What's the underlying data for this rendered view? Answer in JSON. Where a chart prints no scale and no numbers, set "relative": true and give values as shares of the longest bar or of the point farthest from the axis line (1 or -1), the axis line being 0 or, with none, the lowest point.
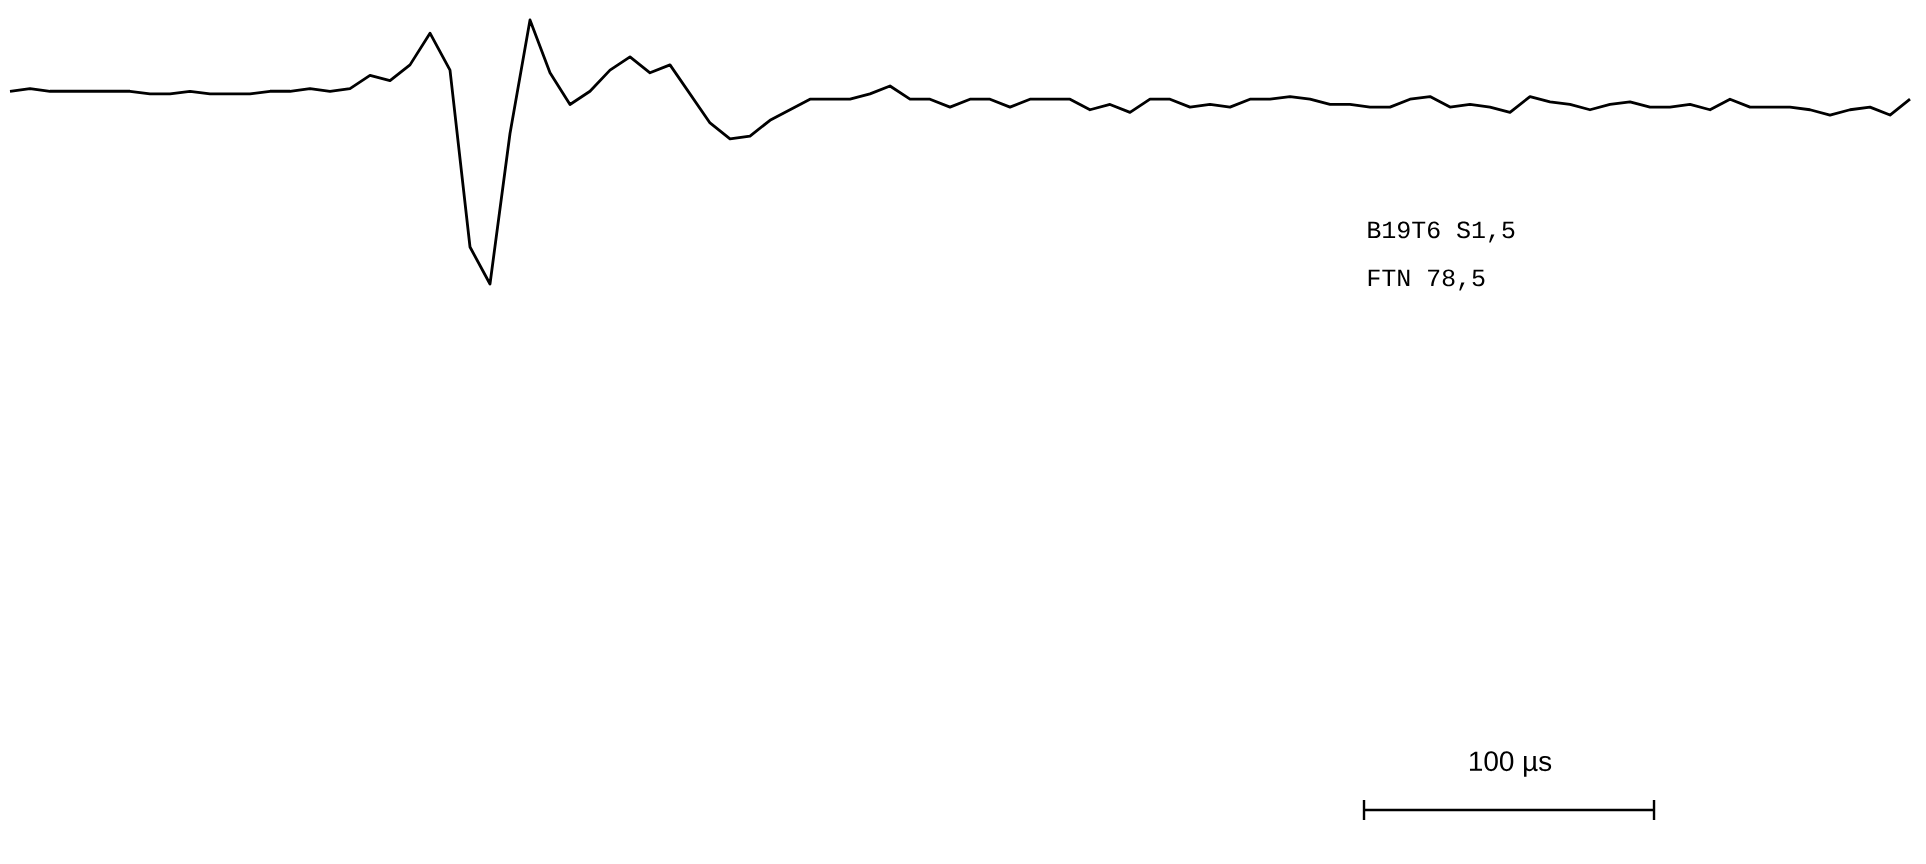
{
  "chart_data": {
    "type": "line",
    "relative": true,
    "categories": [
      null,
      null,
      null,
      null,
      null,
      null,
      null,
      null,
      null,
      null,
      null,
      null,
      null,
      null,
      null,
      null,
      null,
      null,
      null,
      null,
      null,
      null,
      null,
      null,
      null,
      null,
      null,
      null,
      null,
      null,
      null,
      null,
      null,
      null,
      null,
      null,
      null,
      null,
      null,
      null,
      null,
      null,
      null,
      null,
      null,
      null,
      null,
      null,
      null,
      null,
      null,
      null,
      null,
      null,
      null,
      null,
      null,
      null,
      null,
      null,
      null,
      null,
      null,
      null,
      null,
      null,
      null,
      null,
      null,
      null,
      null,
      null,
      null,
      null,
      null,
      null,
      null,
      null,
      null,
      null,
      null,
      null,
      null,
      null,
      null,
      null,
      null,
      null,
      null,
      null,
      null,
      null,
      null,
      null,
      null,
      null
    ],
    "series": [
      {
        "color": "#000000",
        "values": [
          0.73,
          0.74,
          0.73,
          0.73,
          0.73,
          0.73,
          0.73,
          0.72,
          0.72,
          0.73,
          0.72,
          0.72,
          0.72,
          0.73,
          0.73,
          0.74,
          0.73,
          0.74,
          0.79,
          0.77,
          0.83,
          0.95,
          0.81,
          0.14,
          0,
          0.57,
          1,
          0.8,
          0.68,
          0.73,
          0.81,
          0.86,
          0.8,
          0.83,
          0.72,
          0.61,
          0.55,
          0.56,
          0.62,
          0.66,
          0.7,
          0.7,
          0.7,
          0.72,
          0.75,
          0.7,
          0.7,
          0.67,
          0.7,
          0.7,
          0.67,
          0.7,
          0.7,
          0.7,
          0.66,
          0.68,
          0.65,
          0.7,
          0.7,
          0.67,
          0.68,
          0.67,
          0.7,
          0.7,
          0.71,
          0.7,
          0.68,
          0.68,
          0.67,
          0.67,
          0.7,
          0.71,
          0.67,
          0.68,
          0.67,
          0.65,
          0.71,
          0.69,
          0.68,
          0.66,
          0.68,
          0.69,
          0.67,
          0.67,
          0.68,
          0.66,
          0.7,
          0.67,
          0.67,
          0.67,
          0.66,
          0.64,
          0.66,
          0.67,
          0.64,
          0.7
        ]
      }
    ],
    "annotations": [
      "B19T6 S1,5",
      "FTN 78,5",
      "100 µs"
    ],
    "line_style": "solid",
    "marker": "none"
  }
}
